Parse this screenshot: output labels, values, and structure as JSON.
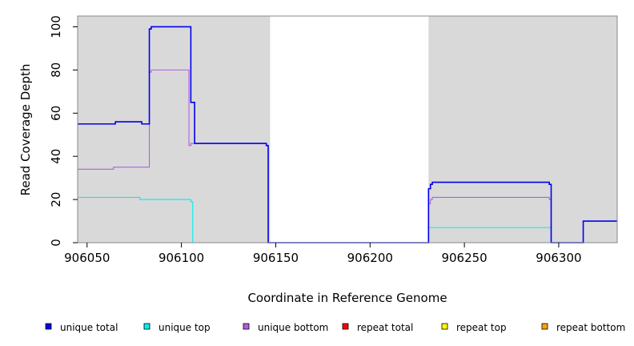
{
  "chart_data": {
    "type": "line",
    "title": "",
    "xlabel": "Coordinate in Reference Genome",
    "ylabel": "Read Coverage Depth",
    "xlim": [
      906045,
      906331
    ],
    "ylim": [
      0,
      105
    ],
    "x_ticks": [
      906050,
      906100,
      906150,
      906200,
      906250,
      906300
    ],
    "y_ticks": [
      0,
      20,
      40,
      60,
      80,
      100
    ],
    "grid": false,
    "background_color": "#d9d9d9",
    "unshaded_region": [
      906147,
      906231
    ],
    "legend_position": "bottom",
    "series": [
      {
        "name": "unique total",
        "color": "#0000ee",
        "steps": [
          [
            906045,
            55
          ],
          [
            906065,
            56
          ],
          [
            906079,
            55
          ],
          [
            906083,
            99
          ],
          [
            906084,
            100
          ],
          [
            906105,
            65
          ],
          [
            906107,
            46
          ],
          [
            906145,
            45
          ],
          [
            906146,
            0
          ],
          [
            906231,
            25
          ],
          [
            906232,
            27
          ],
          [
            906233,
            28
          ],
          [
            906295,
            27
          ],
          [
            906296,
            0
          ],
          [
            906313,
            10
          ],
          [
            906331,
            10
          ]
        ]
      },
      {
        "name": "unique top",
        "color": "#00eeee",
        "steps": [
          [
            906045,
            21
          ],
          [
            906078,
            20
          ],
          [
            906105,
            19
          ],
          [
            906106,
            0
          ],
          [
            906231,
            7
          ],
          [
            906296,
            0
          ],
          [
            906331,
            0
          ]
        ]
      },
      {
        "name": "unique bottom",
        "color": "#b060e0",
        "steps": [
          [
            906045,
            34
          ],
          [
            906064,
            35
          ],
          [
            906083,
            79
          ],
          [
            906084,
            80
          ],
          [
            906104,
            45
          ],
          [
            906105,
            46
          ],
          [
            906145,
            45
          ],
          [
            906146,
            0
          ],
          [
            906231,
            18
          ],
          [
            906232,
            20
          ],
          [
            906233,
            21
          ],
          [
            906295,
            20
          ],
          [
            906296,
            0
          ],
          [
            906331,
            0
          ]
        ]
      },
      {
        "name": "repeat total",
        "color": "#ff0000",
        "steps": [
          [
            906045,
            0
          ],
          [
            906331,
            0
          ]
        ]
      },
      {
        "name": "repeat top",
        "color": "#ffff00",
        "steps": [
          [
            906045,
            0
          ],
          [
            906331,
            0
          ]
        ]
      },
      {
        "name": "repeat bottom",
        "color": "#ffa500",
        "steps": [
          [
            906045,
            0
          ],
          [
            906331,
            0
          ]
        ]
      }
    ]
  }
}
